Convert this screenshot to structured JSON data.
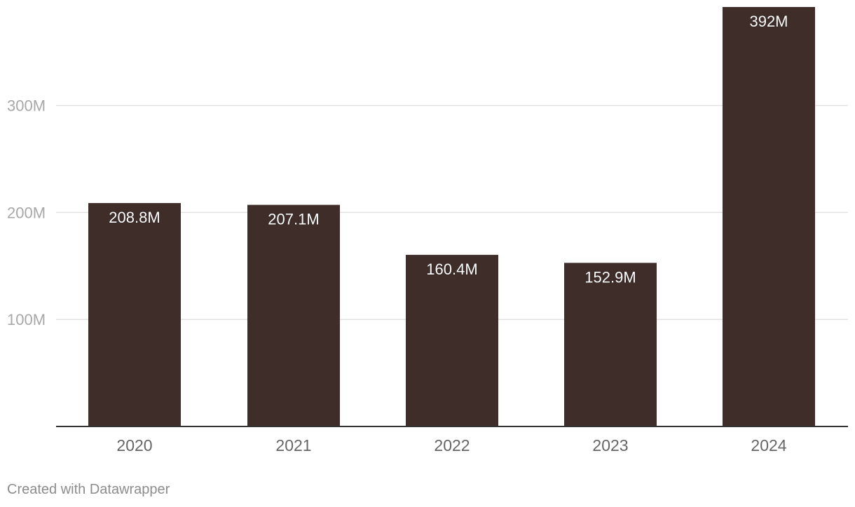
{
  "chart_data": {
    "type": "bar",
    "categories": [
      "2020",
      "2021",
      "2022",
      "2023",
      "2024"
    ],
    "values": [
      208.8,
      207.1,
      160.4,
      152.9,
      392
    ],
    "value_labels": [
      "208.8M",
      "207.1M",
      "160.4M",
      "152.9M",
      "392M"
    ],
    "y_ticks": [
      100,
      200,
      300
    ],
    "y_tick_labels": [
      "100M",
      "200M",
      "300M"
    ],
    "ylim": [
      0,
      392
    ],
    "grid": true,
    "bar_color": "#3f2d2a",
    "label_color": "#ffffff"
  },
  "footer": {
    "credit": "Created with Datawrapper"
  }
}
